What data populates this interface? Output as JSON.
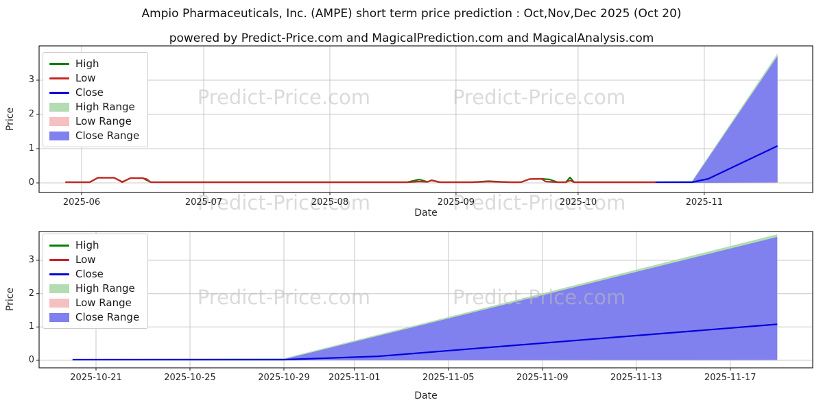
{
  "header": {
    "title": "Ampio Pharmaceuticals, Inc. (AMPE) short term price prediction : Oct,Nov,Dec 2025 (Oct 20)",
    "subtitle": "powered by Predict-Price.com and MagicalPrediction.com and MagicalAnalysis.com"
  },
  "watermark": {
    "text": "Predict-Price.com"
  },
  "colors": {
    "high": "#008000",
    "low": "#cc2222",
    "close": "#0000dd",
    "high_range": "#b3dcb3",
    "low_range": "#f6c0c0",
    "close_range": "#8080ee",
    "grid": "#c8c8c8",
    "axis": "#202020",
    "watermark": "#bebebe"
  },
  "chart_data": [
    {
      "type": "line",
      "title": "",
      "xlabel": "Date",
      "ylabel": "Price",
      "grid": true,
      "legend_position": "upper left",
      "ylim": [
        -0.28,
        4.0
      ],
      "yticks": [
        0,
        1,
        2,
        3
      ],
      "xlim": [
        "2025-05-21",
        "2025-11-28"
      ],
      "xticks": [
        {
          "label": "2025-06",
          "date": "2025-06-01"
        },
        {
          "label": "2025-07",
          "date": "2025-07-01"
        },
        {
          "label": "2025-08",
          "date": "2025-08-01"
        },
        {
          "label": "2025-09",
          "date": "2025-09-01"
        },
        {
          "label": "2025-10",
          "date": "2025-10-01"
        },
        {
          "label": "2025-11",
          "date": "2025-11-01"
        }
      ],
      "legend": [
        {
          "label": "High",
          "type": "line",
          "color": "#008000"
        },
        {
          "label": "Low",
          "type": "line",
          "color": "#cc2222"
        },
        {
          "label": "Close",
          "type": "line",
          "color": "#0000dd"
        },
        {
          "label": "High Range",
          "type": "patch",
          "color": "#b3dcb3"
        },
        {
          "label": "Low Range",
          "type": "patch",
          "color": "#f6c0c0"
        },
        {
          "label": "Close Range",
          "type": "patch",
          "color": "#8080ee"
        }
      ],
      "series": [
        {
          "name": "High",
          "color": "#008000",
          "points": [
            [
              "2025-05-28",
              0.02
            ],
            [
              "2025-06-03",
              0.02
            ],
            [
              "2025-06-05",
              0.15
            ],
            [
              "2025-06-09",
              0.15
            ],
            [
              "2025-06-11",
              0.03
            ],
            [
              "2025-06-13",
              0.14
            ],
            [
              "2025-06-16",
              0.14
            ],
            [
              "2025-06-18",
              0.02
            ],
            [
              "2025-08-20",
              0.02
            ],
            [
              "2025-08-23",
              0.1
            ],
            [
              "2025-08-25",
              0.03
            ],
            [
              "2025-08-26",
              0.07
            ],
            [
              "2025-08-28",
              0.02
            ],
            [
              "2025-09-05",
              0.02
            ],
            [
              "2025-09-09",
              0.05
            ],
            [
              "2025-09-14",
              0.02
            ],
            [
              "2025-09-17",
              0.02
            ],
            [
              "2025-09-19",
              0.11
            ],
            [
              "2025-09-22",
              0.12
            ],
            [
              "2025-09-24",
              0.1
            ],
            [
              "2025-09-26",
              0.02
            ],
            [
              "2025-09-28",
              0.02
            ],
            [
              "2025-09-29",
              0.16
            ],
            [
              "2025-09-30",
              0.02
            ],
            [
              "2025-10-20",
              0.02
            ]
          ]
        },
        {
          "name": "Low",
          "color": "#cc2222",
          "points": [
            [
              "2025-05-28",
              0.02
            ],
            [
              "2025-06-03",
              0.02
            ],
            [
              "2025-06-05",
              0.15
            ],
            [
              "2025-06-09",
              0.15
            ],
            [
              "2025-06-11",
              0.02
            ],
            [
              "2025-06-13",
              0.14
            ],
            [
              "2025-06-16",
              0.14
            ],
            [
              "2025-06-17",
              0.11
            ],
            [
              "2025-06-18",
              0.02
            ],
            [
              "2025-08-20",
              0.02
            ],
            [
              "2025-08-23",
              0.04
            ],
            [
              "2025-08-25",
              0.03
            ],
            [
              "2025-08-26",
              0.08
            ],
            [
              "2025-08-28",
              0.02
            ],
            [
              "2025-09-05",
              0.02
            ],
            [
              "2025-09-09",
              0.04
            ],
            [
              "2025-09-14",
              0.02
            ],
            [
              "2025-09-17",
              0.02
            ],
            [
              "2025-09-19",
              0.11
            ],
            [
              "2025-09-22",
              0.12
            ],
            [
              "2025-09-23",
              0.04
            ],
            [
              "2025-09-26",
              0.02
            ],
            [
              "2025-09-28",
              0.02
            ],
            [
              "2025-09-29",
              0.07
            ],
            [
              "2025-09-30",
              0.02
            ],
            [
              "2025-10-20",
              0.02
            ]
          ]
        },
        {
          "name": "Close",
          "color": "#0000dd",
          "points": [
            [
              "2025-10-20",
              0.02
            ],
            [
              "2025-10-29",
              0.02
            ],
            [
              "2025-11-02",
              0.12
            ],
            [
              "2025-11-19",
              1.08
            ]
          ]
        }
      ],
      "bands": [
        {
          "name": "High Range",
          "color": "#b3dcb3",
          "points": [
            [
              "2025-10-20",
              0.0,
              0.04
            ],
            [
              "2025-10-29",
              0.0,
              0.06
            ],
            [
              "2025-11-19",
              0.02,
              3.78
            ]
          ]
        },
        {
          "name": "Low Range",
          "color": "#f6c0c0",
          "points": [
            [
              "2025-10-20",
              0.0,
              0.03
            ],
            [
              "2025-10-29",
              0.0,
              0.03
            ],
            [
              "2025-11-19",
              0.0,
              0.06
            ]
          ]
        },
        {
          "name": "Close Range",
          "color": "#8080ee",
          "points": [
            [
              "2025-10-20",
              0.0,
              0.03
            ],
            [
              "2025-10-29",
              0.0,
              0.03
            ],
            [
              "2025-11-19",
              0.01,
              3.7
            ]
          ]
        }
      ]
    },
    {
      "type": "line",
      "title": "",
      "xlabel": "Date",
      "ylabel": "Price",
      "grid": true,
      "legend_position": "upper left",
      "ylim": [
        -0.23,
        3.87
      ],
      "yticks": [
        0,
        1,
        2,
        3
      ],
      "xlim": [
        "2025-10-18",
        "2025-11-20"
      ],
      "xticks": [
        {
          "label": "2025-10-21",
          "date": "2025-10-21"
        },
        {
          "label": "2025-10-25",
          "date": "2025-10-25"
        },
        {
          "label": "2025-10-29",
          "date": "2025-10-29"
        },
        {
          "label": "2025-11-01",
          "date": "2025-11-01"
        },
        {
          "label": "2025-11-05",
          "date": "2025-11-05"
        },
        {
          "label": "2025-11-09",
          "date": "2025-11-09"
        },
        {
          "label": "2025-11-13",
          "date": "2025-11-13"
        },
        {
          "label": "2025-11-17",
          "date": "2025-11-17"
        }
      ],
      "legend": [
        {
          "label": "High",
          "type": "line",
          "color": "#008000"
        },
        {
          "label": "Low",
          "type": "line",
          "color": "#cc2222"
        },
        {
          "label": "Close",
          "type": "line",
          "color": "#0000dd"
        },
        {
          "label": "High Range",
          "type": "patch",
          "color": "#b3dcb3"
        },
        {
          "label": "Low Range",
          "type": "patch",
          "color": "#f6c0c0"
        },
        {
          "label": "Close Range",
          "type": "patch",
          "color": "#8080ee"
        }
      ],
      "series": [
        {
          "name": "Close",
          "color": "#0000dd",
          "points": [
            [
              "2025-10-20",
              0.02
            ],
            [
              "2025-10-29",
              0.02
            ],
            [
              "2025-11-02",
              0.12
            ],
            [
              "2025-11-19",
              1.08
            ]
          ]
        }
      ],
      "bands": [
        {
          "name": "High Range",
          "color": "#b3dcb3",
          "points": [
            [
              "2025-10-20",
              0.0,
              0.04
            ],
            [
              "2025-10-29",
              0.0,
              0.06
            ],
            [
              "2025-11-19",
              0.02,
              3.78
            ]
          ]
        },
        {
          "name": "Low Range",
          "color": "#f6c0c0",
          "points": [
            [
              "2025-10-20",
              0.0,
              0.03
            ],
            [
              "2025-10-29",
              0.0,
              0.03
            ],
            [
              "2025-11-19",
              0.0,
              0.06
            ]
          ]
        },
        {
          "name": "Close Range",
          "color": "#8080ee",
          "points": [
            [
              "2025-10-20",
              0.0,
              0.03
            ],
            [
              "2025-10-29",
              0.0,
              0.03
            ],
            [
              "2025-11-19",
              0.01,
              3.7
            ]
          ]
        }
      ]
    }
  ]
}
